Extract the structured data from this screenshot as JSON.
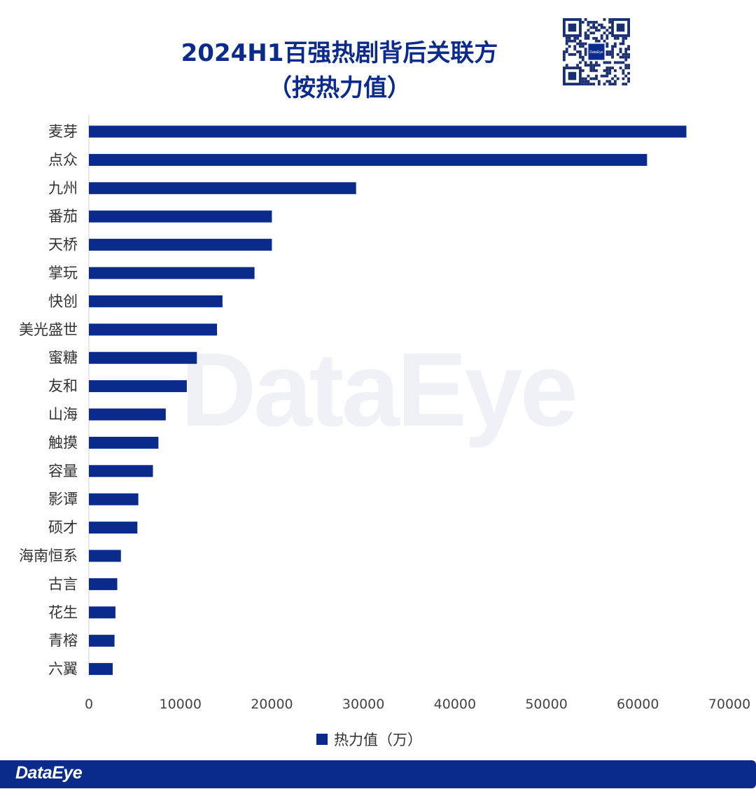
{
  "title_line1": "2024H1百强热剧背后关联方",
  "title_line2": "（按热力值）",
  "brand": "DataEye",
  "watermark_text": "DataEye",
  "qr_center_text": "DataEye",
  "chart_data": {
    "type": "bar",
    "orientation": "horizontal",
    "categories": [
      "麦芽",
      "点众",
      "九州",
      "番茄",
      "天桥",
      "掌玩",
      "快创",
      "美光盛世",
      "蜜糖",
      "友和",
      "山海",
      "触摸",
      "容量",
      "影谭",
      "硕才",
      "海南恒系",
      "古言",
      "花生",
      "青榕",
      "六翼"
    ],
    "series": [
      {
        "name": "热力值（万）",
        "values": [
          65300,
          61000,
          29200,
          20000,
          20000,
          18100,
          14600,
          14000,
          11800,
          10700,
          8400,
          7600,
          7000,
          5400,
          5300,
          3500,
          3100,
          2900,
          2800,
          2600
        ]
      }
    ],
    "xlim": [
      0,
      70000
    ],
    "xticks": [
      "0",
      "10000",
      "20000",
      "30000",
      "40000",
      "50000",
      "60000",
      "70000"
    ],
    "grid": false,
    "legend_position": "bottom",
    "bar_color": "#0a2a8c"
  }
}
